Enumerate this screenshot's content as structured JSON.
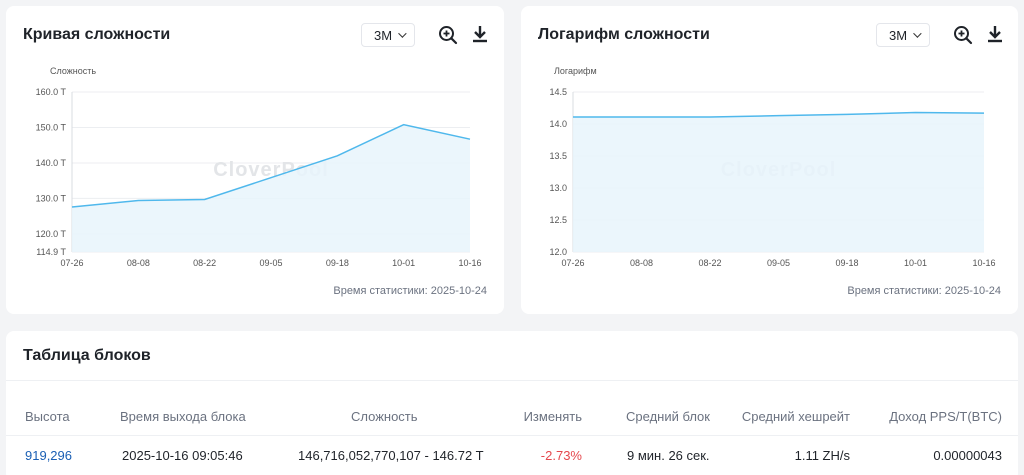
{
  "left_chart": {
    "title": "Кривая сложности",
    "period": "3M",
    "watermark": "CloverPool",
    "stat_time": "Время статистики: 2025-10-24",
    "icons": {
      "zoom": "zoom-in-icon",
      "download": "download-icon"
    },
    "chart_data": {
      "type": "area",
      "ylabel": "Сложность",
      "x": [
        "07-26",
        "08-08",
        "08-22",
        "09-05",
        "09-18",
        "10-01",
        "10-16"
      ],
      "y_ticks": [
        "114.9 T",
        "120.0 T",
        "130.0 T",
        "140.0 T",
        "150.0 T",
        "160.0 T"
      ],
      "ylim": [
        114.9,
        160.0
      ],
      "series": [
        {
          "values": [
            127.6,
            129.4,
            129.7,
            null,
            142.0,
            150.8,
            146.7
          ]
        }
      ],
      "points": [
        {
          "x": "07-26",
          "y": 127.6
        },
        {
          "x": "08-08",
          "y": 129.4
        },
        {
          "x": "08-22",
          "y": 129.7
        },
        {
          "x": "09-18",
          "y": 142.0
        },
        {
          "x": "10-01",
          "y": 150.8
        },
        {
          "x": "10-16",
          "y": 146.7
        }
      ],
      "grid": true,
      "color": "#4fb8ec"
    }
  },
  "right_chart": {
    "title": "Логарифм сложности",
    "period": "3M",
    "watermark": "CloverPool",
    "stat_time": "Время статистики: 2025-10-24",
    "icons": {
      "zoom": "zoom-in-icon",
      "download": "download-icon"
    },
    "chart_data": {
      "type": "area",
      "ylabel": "Логарифм",
      "x": [
        "07-26",
        "08-08",
        "08-22",
        "09-05",
        "09-18",
        "10-01",
        "10-16"
      ],
      "y_ticks": [
        "12.0",
        "12.5",
        "13.0",
        "13.5",
        "14.0",
        "14.5"
      ],
      "ylim": [
        12.0,
        14.5
      ],
      "points": [
        {
          "x": "07-26",
          "y": 14.11
        },
        {
          "x": "08-08",
          "y": 14.11
        },
        {
          "x": "08-22",
          "y": 14.11
        },
        {
          "x": "09-05",
          "y": 14.13
        },
        {
          "x": "09-18",
          "y": 14.15
        },
        {
          "x": "10-01",
          "y": 14.18
        },
        {
          "x": "10-16",
          "y": 14.17
        }
      ],
      "grid": true,
      "color": "#4fb8ec"
    }
  },
  "block_table": {
    "title": "Таблица блоков",
    "headers": {
      "height": "Высота",
      "time": "Время выхода блока",
      "difficulty": "Сложность",
      "change": "Изменять",
      "avg_block": "Средний блок",
      "avg_hashrate": "Средний хешрейт",
      "pps": "Доход PPS/T(BTC)"
    },
    "rows": [
      {
        "height": "919,296",
        "time": "2025-10-16 09:05:46",
        "difficulty": "146,716,052,770,107 - 146.72 T",
        "change": "-2.73%",
        "avg_block": "9 мин. 26 сек.",
        "avg_hashrate": "1.11 ZH/s",
        "pps": "0.00000043"
      }
    ]
  }
}
